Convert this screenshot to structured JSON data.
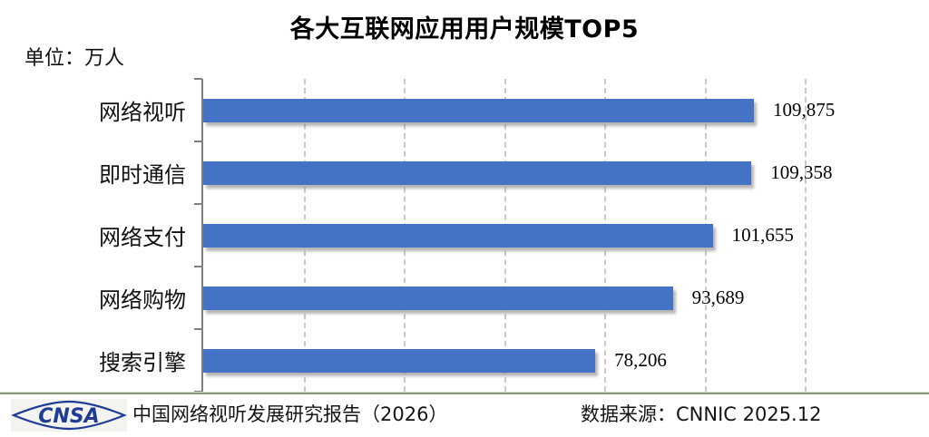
{
  "title": "各大互联网应用用户规模TOP5",
  "unit_label": "单位：万人",
  "chart_data": {
    "type": "bar",
    "orientation": "horizontal",
    "title": "各大互联网应用用户规模TOP5",
    "unit": "万人",
    "categories": [
      "网络视听",
      "即时通信",
      "网络支付",
      "网络购物",
      "搜索引擎"
    ],
    "values": [
      109875,
      109358,
      101655,
      93689,
      78206
    ],
    "value_labels": [
      "109,875",
      "109,358",
      "101,655",
      "93,689",
      "78,206"
    ],
    "xlim": [
      0,
      120000
    ],
    "gridline_step": 20000,
    "grid": "vertical-dashed",
    "legend": "none",
    "bar_color": "#4472C4"
  },
  "footer": {
    "logo_text": "CNSA",
    "report_title": "中国网络视听发展研究报告（2026）",
    "data_source": "数据来源：CNNIC 2025.12"
  },
  "colors": {
    "bar": "#4472C4",
    "axis": "#7f7f7f",
    "gridline": "#c9c9c9",
    "divider": "#8a9a7c",
    "logo_blue": "#1e3c96",
    "background": "#ffffff"
  }
}
